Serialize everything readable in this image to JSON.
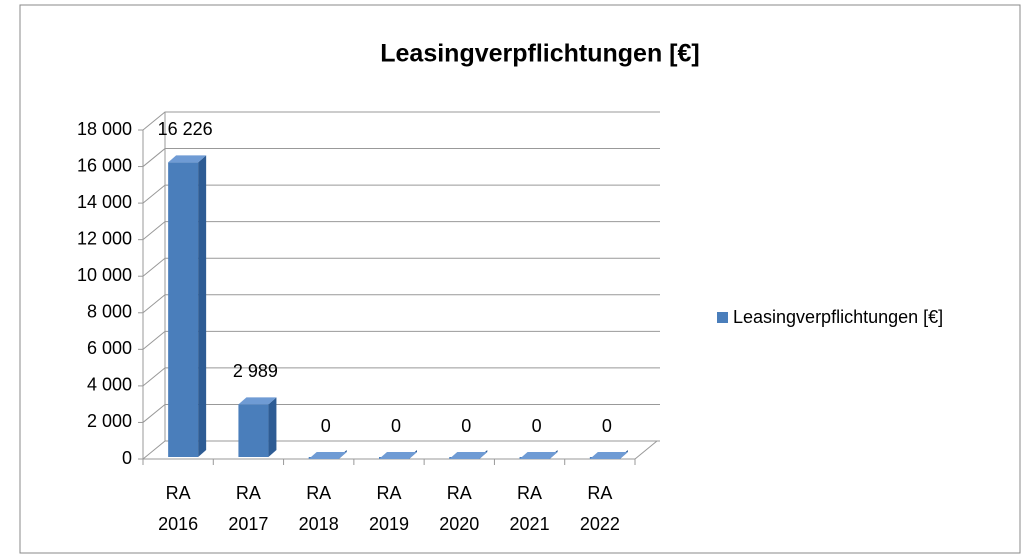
{
  "chart_data": {
    "type": "bar3d",
    "title": "Leasingverpflichtungen [€]",
    "categories": [
      "RA 2016",
      "RA 2017",
      "RA 2018",
      "RA 2019",
      "RA 2020",
      "RA 2021",
      "RA 2022"
    ],
    "series": [
      {
        "name": "Leasingverpflichtungen [€]",
        "color": "#4a7ebb",
        "values": [
          16226,
          2989,
          0,
          0,
          0,
          0,
          0
        ],
        "value_labels": [
          "16 226",
          "2 989",
          "0",
          "0",
          "0",
          "0",
          "0"
        ]
      }
    ],
    "ylim": [
      0,
      18000
    ],
    "yticks": [
      0,
      {
        "value": 2000,
        "label": "2 000"
      },
      {
        "value": 4000,
        "label": "4 000"
      },
      {
        "value": 6000,
        "label": "6 000"
      },
      {
        "value": 8000,
        "label": "8 000"
      },
      {
        "value": 10000,
        "label": "10 000"
      },
      {
        "value": 12000,
        "label": "12 000"
      },
      {
        "value": 14000,
        "label": "14 000"
      },
      {
        "value": 16000,
        "label": "16 000"
      },
      {
        "value": 18000,
        "label": "18 000"
      }
    ],
    "grid": true,
    "legend": "right"
  }
}
